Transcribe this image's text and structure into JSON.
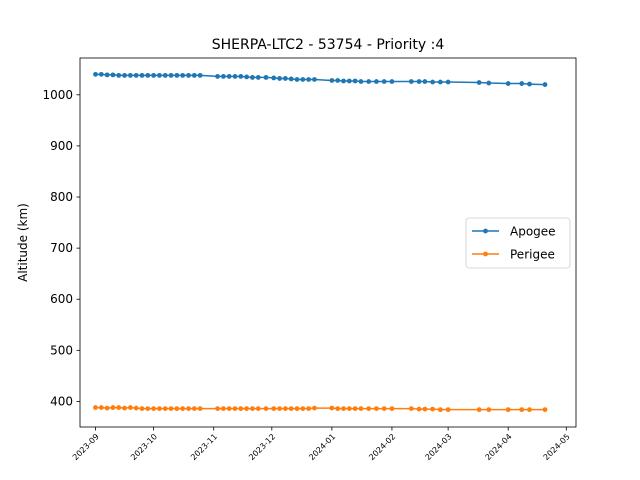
{
  "chart_data": {
    "type": "line",
    "title": "SHERPA-LTC2 - 53754 - Priority :4",
    "xlabel": "",
    "ylabel": "Altitude (km)",
    "xlim": [
      "2023-08-24",
      "2024-05-06"
    ],
    "ylim": [
      350,
      1072
    ],
    "x_ticks": [
      "2023-09",
      "2023-10",
      "2023-11",
      "2023-12",
      "2024-01",
      "2024-02",
      "2024-03",
      "2024-04",
      "2024-05"
    ],
    "y_ticks": [
      400,
      500,
      600,
      700,
      800,
      900,
      1000
    ],
    "grid": false,
    "legend_position": "center-right",
    "series": [
      {
        "name": "Apogee",
        "color": "#1f77b4",
        "points": [
          [
            "2023-09-01",
            1040
          ],
          [
            "2023-09-04",
            1040
          ],
          [
            "2023-09-07",
            1039
          ],
          [
            "2023-09-10",
            1039
          ],
          [
            "2023-09-13",
            1038
          ],
          [
            "2023-09-16",
            1038
          ],
          [
            "2023-09-19",
            1038
          ],
          [
            "2023-09-22",
            1038
          ],
          [
            "2023-09-25",
            1038
          ],
          [
            "2023-09-28",
            1038
          ],
          [
            "2023-10-01",
            1038
          ],
          [
            "2023-10-04",
            1038
          ],
          [
            "2023-10-07",
            1038
          ],
          [
            "2023-10-10",
            1038
          ],
          [
            "2023-10-13",
            1038
          ],
          [
            "2023-10-16",
            1038
          ],
          [
            "2023-10-19",
            1038
          ],
          [
            "2023-10-22",
            1038
          ],
          [
            "2023-10-25",
            1038
          ],
          [
            "2023-11-03",
            1036
          ],
          [
            "2023-11-06",
            1036
          ],
          [
            "2023-11-09",
            1036
          ],
          [
            "2023-11-12",
            1036
          ],
          [
            "2023-11-15",
            1036
          ],
          [
            "2023-11-18",
            1035
          ],
          [
            "2023-11-21",
            1034
          ],
          [
            "2023-11-24",
            1034
          ],
          [
            "2023-11-28",
            1034
          ],
          [
            "2023-12-02",
            1033
          ],
          [
            "2023-12-05",
            1032
          ],
          [
            "2023-12-08",
            1032
          ],
          [
            "2023-12-11",
            1031
          ],
          [
            "2023-12-14",
            1030
          ],
          [
            "2023-12-17",
            1030
          ],
          [
            "2023-12-20",
            1030
          ],
          [
            "2023-12-23",
            1030
          ],
          [
            "2024-01-01",
            1028
          ],
          [
            "2024-01-04",
            1028
          ],
          [
            "2024-01-07",
            1027
          ],
          [
            "2024-01-10",
            1027
          ],
          [
            "2024-01-13",
            1027
          ],
          [
            "2024-01-16",
            1026
          ],
          [
            "2024-01-20",
            1026
          ],
          [
            "2024-01-24",
            1026
          ],
          [
            "2024-01-28",
            1026
          ],
          [
            "2024-02-01",
            1026
          ],
          [
            "2024-02-11",
            1026
          ],
          [
            "2024-02-15",
            1026
          ],
          [
            "2024-02-18",
            1026
          ],
          [
            "2024-02-22",
            1025
          ],
          [
            "2024-02-26",
            1025
          ],
          [
            "2024-03-01",
            1025
          ],
          [
            "2024-03-17",
            1024
          ],
          [
            "2024-03-22",
            1023
          ],
          [
            "2024-04-01",
            1022
          ],
          [
            "2024-04-08",
            1022
          ],
          [
            "2024-04-12",
            1021
          ],
          [
            "2024-04-20",
            1020
          ]
        ]
      },
      {
        "name": "Perigee",
        "color": "#ff7f0e",
        "points": [
          [
            "2023-09-01",
            388
          ],
          [
            "2023-09-04",
            388
          ],
          [
            "2023-09-07",
            387
          ],
          [
            "2023-09-10",
            388
          ],
          [
            "2023-09-13",
            388
          ],
          [
            "2023-09-16",
            387
          ],
          [
            "2023-09-19",
            388
          ],
          [
            "2023-09-22",
            387
          ],
          [
            "2023-09-25",
            386
          ],
          [
            "2023-09-28",
            386
          ],
          [
            "2023-10-01",
            386
          ],
          [
            "2023-10-04",
            386
          ],
          [
            "2023-10-07",
            386
          ],
          [
            "2023-10-10",
            386
          ],
          [
            "2023-10-13",
            386
          ],
          [
            "2023-10-16",
            386
          ],
          [
            "2023-10-19",
            386
          ],
          [
            "2023-10-22",
            386
          ],
          [
            "2023-10-25",
            386
          ],
          [
            "2023-11-03",
            386
          ],
          [
            "2023-11-06",
            386
          ],
          [
            "2023-11-09",
            386
          ],
          [
            "2023-11-12",
            386
          ],
          [
            "2023-11-15",
            386
          ],
          [
            "2023-11-18",
            386
          ],
          [
            "2023-11-21",
            386
          ],
          [
            "2023-11-24",
            386
          ],
          [
            "2023-11-28",
            386
          ],
          [
            "2023-12-02",
            386
          ],
          [
            "2023-12-05",
            386
          ],
          [
            "2023-12-08",
            386
          ],
          [
            "2023-12-11",
            386
          ],
          [
            "2023-12-14",
            386
          ],
          [
            "2023-12-17",
            386
          ],
          [
            "2023-12-20",
            386
          ],
          [
            "2023-12-23",
            387
          ],
          [
            "2024-01-01",
            387
          ],
          [
            "2024-01-04",
            386
          ],
          [
            "2024-01-07",
            386
          ],
          [
            "2024-01-10",
            386
          ],
          [
            "2024-01-13",
            386
          ],
          [
            "2024-01-16",
            386
          ],
          [
            "2024-01-20",
            386
          ],
          [
            "2024-01-24",
            386
          ],
          [
            "2024-01-28",
            386
          ],
          [
            "2024-02-01",
            386
          ],
          [
            "2024-02-11",
            386
          ],
          [
            "2024-02-15",
            385
          ],
          [
            "2024-02-18",
            385
          ],
          [
            "2024-02-22",
            385
          ],
          [
            "2024-02-26",
            384
          ],
          [
            "2024-03-01",
            384
          ],
          [
            "2024-03-17",
            384
          ],
          [
            "2024-03-22",
            384
          ],
          [
            "2024-04-01",
            384
          ],
          [
            "2024-04-08",
            384
          ],
          [
            "2024-04-12",
            384
          ],
          [
            "2024-04-20",
            384
          ]
        ]
      }
    ]
  }
}
